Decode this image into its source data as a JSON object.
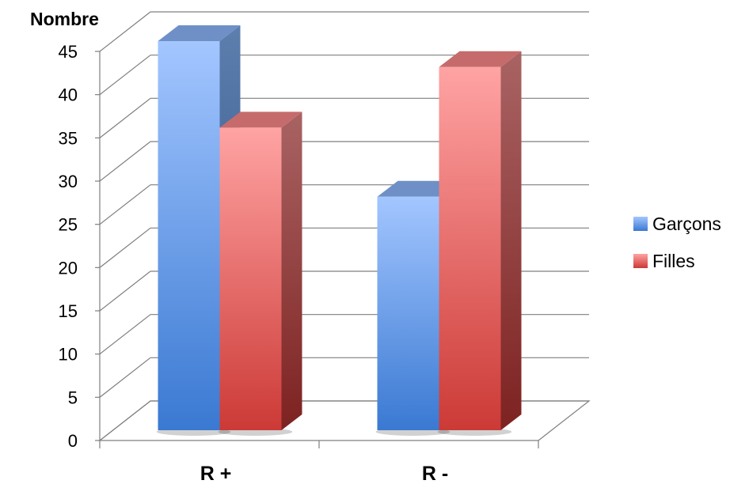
{
  "chart_data": {
    "type": "bar",
    "style": "3d-clustered-column",
    "ylabel": "Nombre",
    "xlabel": "",
    "categories": [
      "R +",
      "R -"
    ],
    "ylim": [
      0,
      45
    ],
    "yticks": [
      "0",
      "5",
      "10",
      "15",
      "20",
      "25",
      "30",
      "35",
      "40",
      "45"
    ],
    "grid": true,
    "legend_position": "right",
    "series": [
      {
        "name": "Garçons",
        "values": [
          45,
          27
        ],
        "color": "#5b8fd6"
      },
      {
        "name": "Filles",
        "values": [
          35,
          42
        ],
        "color": "#e05a5a"
      }
    ]
  }
}
